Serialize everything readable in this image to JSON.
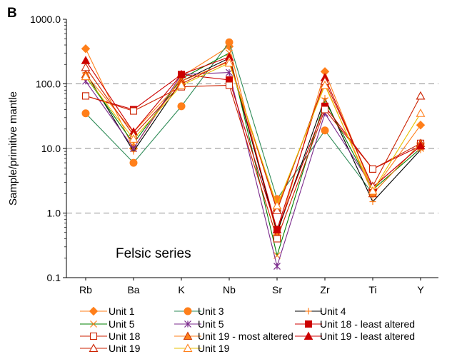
{
  "panel_label": "B",
  "chart_data": {
    "type": "line",
    "annotation": "Felsic series",
    "ylabel": "Sample/primitive mantle",
    "xlabel": "",
    "y_scale": "log",
    "ylim": [
      0.1,
      1000
    ],
    "y_ticks": [
      "1000.0",
      "100.0",
      "10.0",
      "1.0",
      "0.1"
    ],
    "grid": "dashed horizontal at decades",
    "legend_position": "bottom",
    "categories": [
      "Rb",
      "Ba",
      "K",
      "Nb",
      "Sr",
      "Zr",
      "Ti",
      "Y"
    ],
    "series": [
      {
        "name": "Unit 1",
        "color": "#ff7f1a",
        "marker": "diamond",
        "values": [
          350,
          10,
          130,
          380,
          0.45,
          155,
          2.2,
          23
        ]
      },
      {
        "name": "Unit 3",
        "color": "#2e8b57",
        "marker": "circle",
        "line_color": "#2e8b57",
        "marker_color": "#ff7f1a",
        "values": [
          35,
          6,
          45,
          440,
          1.65,
          19,
          2.0,
          12
        ]
      },
      {
        "name": "Unit 4",
        "color": "#ff7f1a",
        "marker": "plus",
        "line_color": "#000000",
        "values": [
          150,
          9,
          110,
          250,
          0.5,
          60,
          1.5,
          9.5
        ]
      },
      {
        "name": "Unit 5",
        "color": "#ff7f1a",
        "marker": "x",
        "line_color": "#008000",
        "values": [
          130,
          12,
          120,
          300,
          0.22,
          55,
          2.3,
          10
        ]
      },
      {
        "name": "Unit 5",
        "color": "#7b2a8c",
        "marker": "asterisk",
        "values": [
          110,
          10,
          140,
          150,
          0.15,
          35,
          2.5,
          11
        ]
      },
      {
        "name": "Unit 18 - least altered",
        "color": "#cc0000",
        "marker": "square-filled",
        "values": [
          65,
          40,
          140,
          115,
          0.55,
          45,
          4.8,
          11
        ]
      },
      {
        "name": "Unit 18",
        "color": "#cc2200",
        "marker": "square-open",
        "values": [
          65,
          38,
          90,
          95,
          0.4,
          40,
          4.8,
          12
        ]
      },
      {
        "name": "Unit 19 - most altered",
        "color": "#ff7f1a",
        "marker": "triangle-filled-orange",
        "values": [
          140,
          18,
          110,
          220,
          1.2,
          100,
          2.0,
          12
        ]
      },
      {
        "name": "Unit 19 - least altered",
        "color": "#cc0000",
        "marker": "triangle-filled",
        "values": [
          230,
          18,
          140,
          260,
          0.55,
          125,
          2.5,
          11
        ]
      },
      {
        "name": "Unit 19",
        "color": "#cc2200",
        "marker": "triangle-open",
        "values": [
          180,
          16,
          100,
          230,
          1.1,
          110,
          2.6,
          65
        ]
      },
      {
        "name": "Unit 19",
        "color": "#ff7f1a",
        "marker": "triangle-open-orange",
        "line_color": "#e8c000",
        "values": [
          130,
          14,
          95,
          210,
          1.3,
          95,
          2.2,
          35
        ]
      }
    ],
    "legend": [
      {
        "label": "Unit 1",
        "series": 0
      },
      {
        "label": "Unit 3",
        "series": 1
      },
      {
        "label": "Unit 4",
        "series": 2
      },
      {
        "label": "Unit 5",
        "series": 3
      },
      {
        "label": "Unit 5",
        "series": 4
      },
      {
        "label": "Unit 18 - least altered",
        "series": 5
      },
      {
        "label": "Unit 18",
        "series": 6
      },
      {
        "label": "Unit 19 - most altered",
        "series": 7
      },
      {
        "label": "Unit 19 - least altered",
        "series": 8
      },
      {
        "label": "Unit 19",
        "series": 9
      },
      {
        "label": "Unit 19",
        "series": 10
      }
    ]
  }
}
